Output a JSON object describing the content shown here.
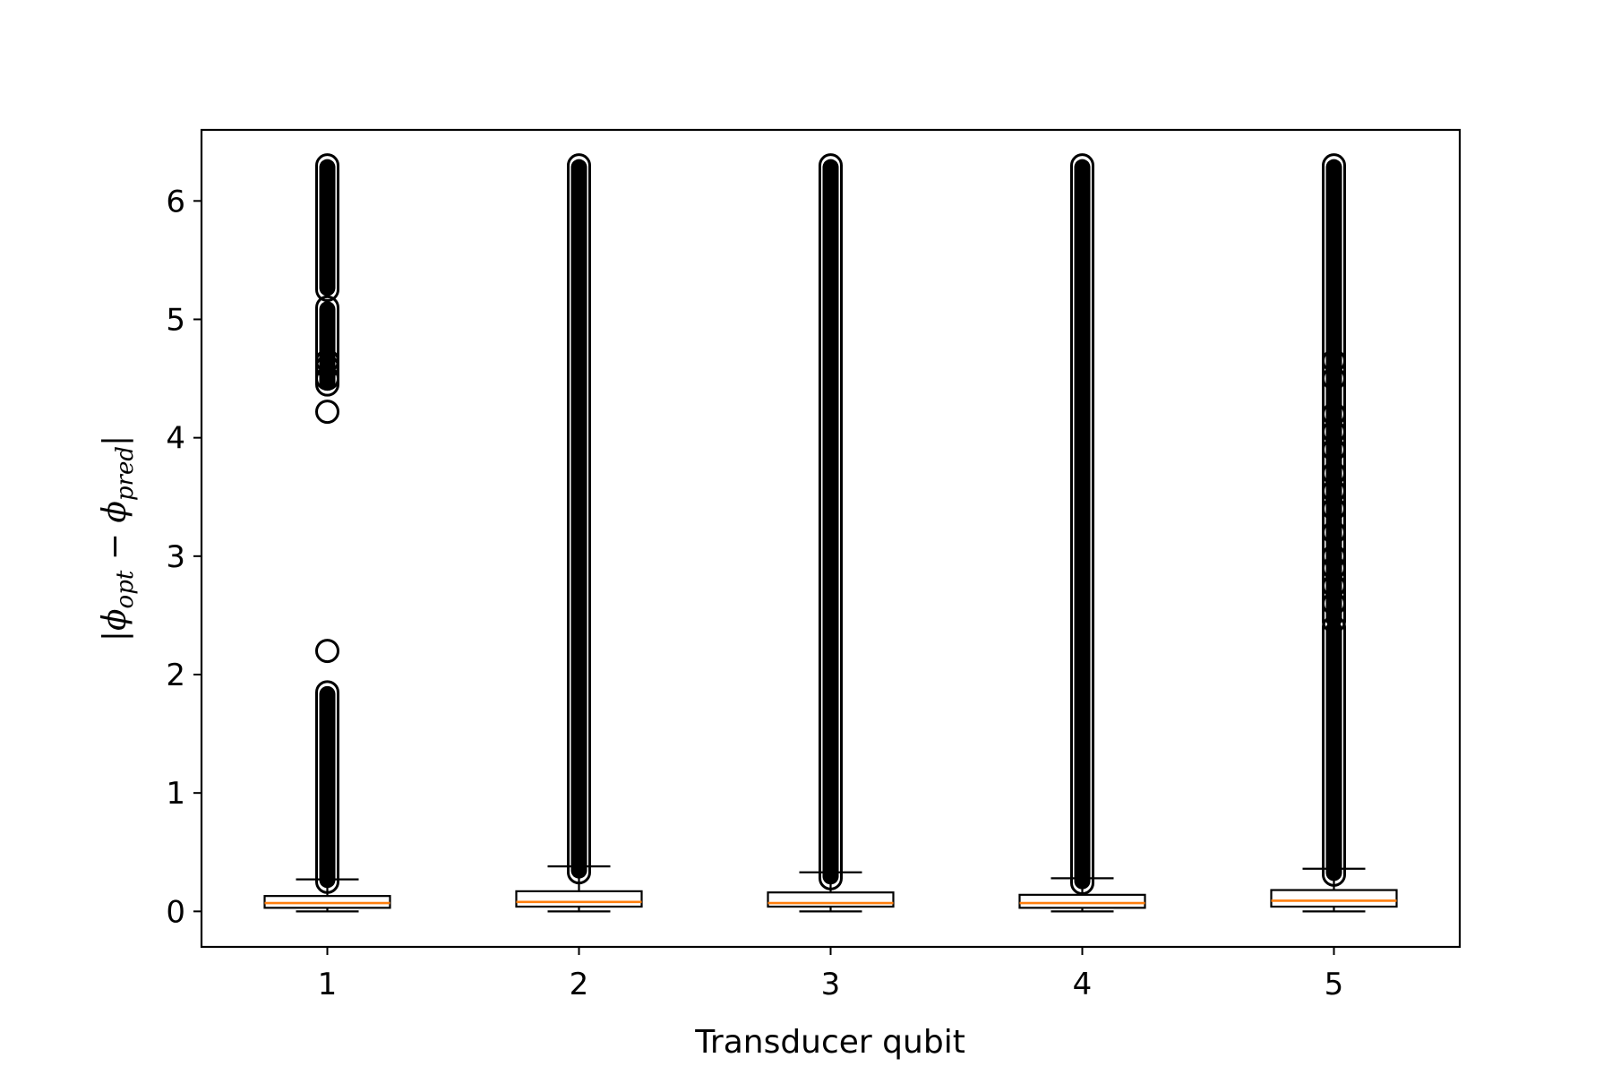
{
  "chart_data": {
    "type": "box",
    "xlabel": "Transducer qubit",
    "ylabel": {
      "bar_open": "|",
      "phi1": "ϕ",
      "sub1": "opt",
      "minus": " − ",
      "phi2": "ϕ",
      "sub2": "pred",
      "bar_close": "|"
    },
    "ylim": [
      -0.3,
      6.6
    ],
    "yticks": [
      0,
      1,
      2,
      3,
      4,
      5,
      6
    ],
    "categories": [
      "1",
      "2",
      "3",
      "4",
      "5"
    ],
    "grid": false,
    "colors": {
      "median": "#ff7f0e",
      "box": "#000000",
      "flier": "#000000"
    },
    "boxes": [
      {
        "label": "1",
        "whisker_low": 0.0,
        "q1": 0.03,
        "median": 0.07,
        "q3": 0.13,
        "whisker_high": 0.27,
        "flier_bands": [
          [
            0.25,
            1.85
          ],
          [
            4.45,
            5.1
          ],
          [
            5.25,
            6.3
          ]
        ],
        "fliers": [
          4.22,
          2.2,
          4.5,
          4.6,
          4.65
        ]
      },
      {
        "label": "2",
        "whisker_low": 0.0,
        "q1": 0.04,
        "median": 0.08,
        "q3": 0.17,
        "whisker_high": 0.38,
        "flier_bands": [
          [
            0.33,
            6.3
          ]
        ],
        "fliers": []
      },
      {
        "label": "3",
        "whisker_low": 0.0,
        "q1": 0.04,
        "median": 0.07,
        "q3": 0.16,
        "whisker_high": 0.33,
        "flier_bands": [
          [
            0.28,
            6.3
          ]
        ],
        "fliers": []
      },
      {
        "label": "4",
        "whisker_low": 0.0,
        "q1": 0.03,
        "median": 0.07,
        "q3": 0.14,
        "whisker_high": 0.28,
        "flier_bands": [
          [
            0.24,
            6.3
          ]
        ],
        "fliers": []
      },
      {
        "label": "5",
        "whisker_low": 0.0,
        "q1": 0.04,
        "median": 0.09,
        "q3": 0.18,
        "whisker_high": 0.36,
        "flier_bands": [
          [
            0.31,
            2.4
          ],
          [
            2.45,
            6.3
          ]
        ],
        "fliers": [
          2.6,
          2.75,
          2.9,
          3.0,
          3.2,
          3.4,
          3.55,
          3.7,
          3.9,
          4.05,
          4.2,
          4.5,
          4.65
        ]
      }
    ]
  }
}
